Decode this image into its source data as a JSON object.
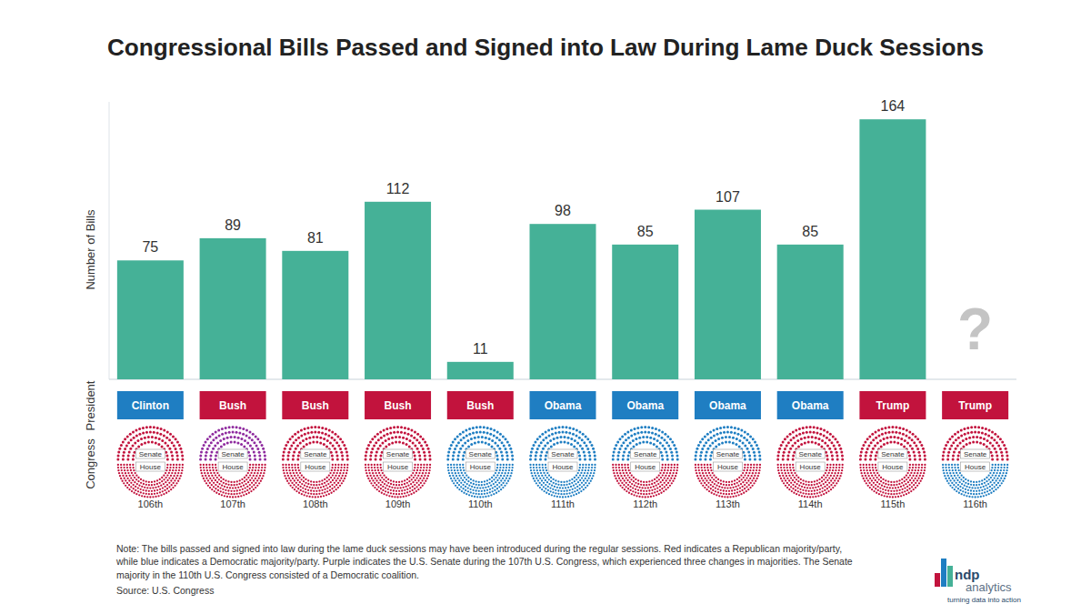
{
  "chart_data": {
    "type": "bar",
    "title": "Congressional Bills Passed and Signed into Law During Lame Duck Sessions",
    "y_label": "Number of Bills",
    "categories": [
      "106th",
      "107th",
      "108th",
      "109th",
      "110th",
      "111th",
      "112th",
      "113th",
      "114th",
      "115th",
      "116th"
    ],
    "values": [
      75,
      89,
      81,
      112,
      11,
      98,
      85,
      107,
      85,
      164,
      null
    ],
    "value_labels": [
      "75",
      "89",
      "81",
      "112",
      "11",
      "98",
      "85",
      "107",
      "85",
      "164",
      "?"
    ],
    "color": "#45b197",
    "ylim": [
      0,
      175
    ],
    "data_labels": true,
    "tick_labels": "x",
    "presidents": {
      "label": "President",
      "names": [
        "Clinton",
        "Bush",
        "Bush",
        "Bush",
        "Bush",
        "Obama",
        "Obama",
        "Obama",
        "Obama",
        "Trump",
        "Trump"
      ],
      "colors": [
        "#1f7ec2",
        "#c2133d",
        "#c2133d",
        "#c2133d",
        "#c2133d",
        "#1f7ec2",
        "#1f7ec2",
        "#1f7ec2",
        "#1f7ec2",
        "#c2133d",
        "#c2133d"
      ]
    },
    "congress": {
      "label": "Congress",
      "senate_label": "Senate",
      "house_label": "House",
      "senate_colors": [
        "#c2133d",
        "#8e2a9e",
        "#c2133d",
        "#c2133d",
        "#1f7ec2",
        "#1f7ec2",
        "#1f7ec2",
        "#1f7ec2",
        "#c2133d",
        "#c2133d",
        "#c2133d"
      ],
      "house_colors": [
        "#c2133d",
        "#c2133d",
        "#c2133d",
        "#c2133d",
        "#1f7ec2",
        "#1f7ec2",
        "#c2133d",
        "#c2133d",
        "#c2133d",
        "#c2133d",
        "#1f7ec2"
      ]
    },
    "note": "Note: The bills passed and signed into law during the lame duck sessions may have been introduced during the regular sessions. Red indicates a Republican majority/party, while blue indicates a Democratic majority/party. Purple indicates the U.S. Senate during the 107th U.S. Congress, which experienced three changes in majorities. The Senate majority in the 110th U.S. Congress consisted of a Democratic coalition.",
    "source": "Source: U.S. Congress",
    "logo": {
      "name": "ndp",
      "sub": "analytics",
      "tagline": "turning data into action"
    }
  }
}
